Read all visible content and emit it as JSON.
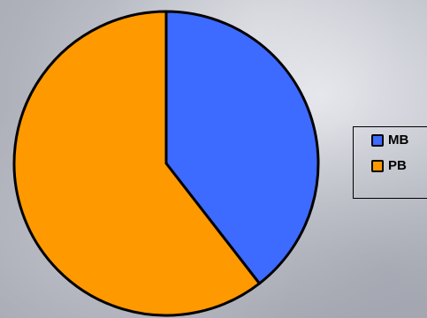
{
  "chart_data": {
    "type": "pie",
    "title": "",
    "slices": [
      {
        "label": "MB",
        "value": 39.5,
        "color": "#3d6aff"
      },
      {
        "label": "PB",
        "value": 60.5,
        "color": "#ff9900"
      }
    ],
    "start_angle_deg": 0,
    "direction": "clockwise",
    "legend_position": "right"
  },
  "legend": {
    "items": [
      {
        "label": "MB",
        "color": "#3d6aff"
      },
      {
        "label": "PB",
        "color": "#ff9900"
      }
    ]
  }
}
